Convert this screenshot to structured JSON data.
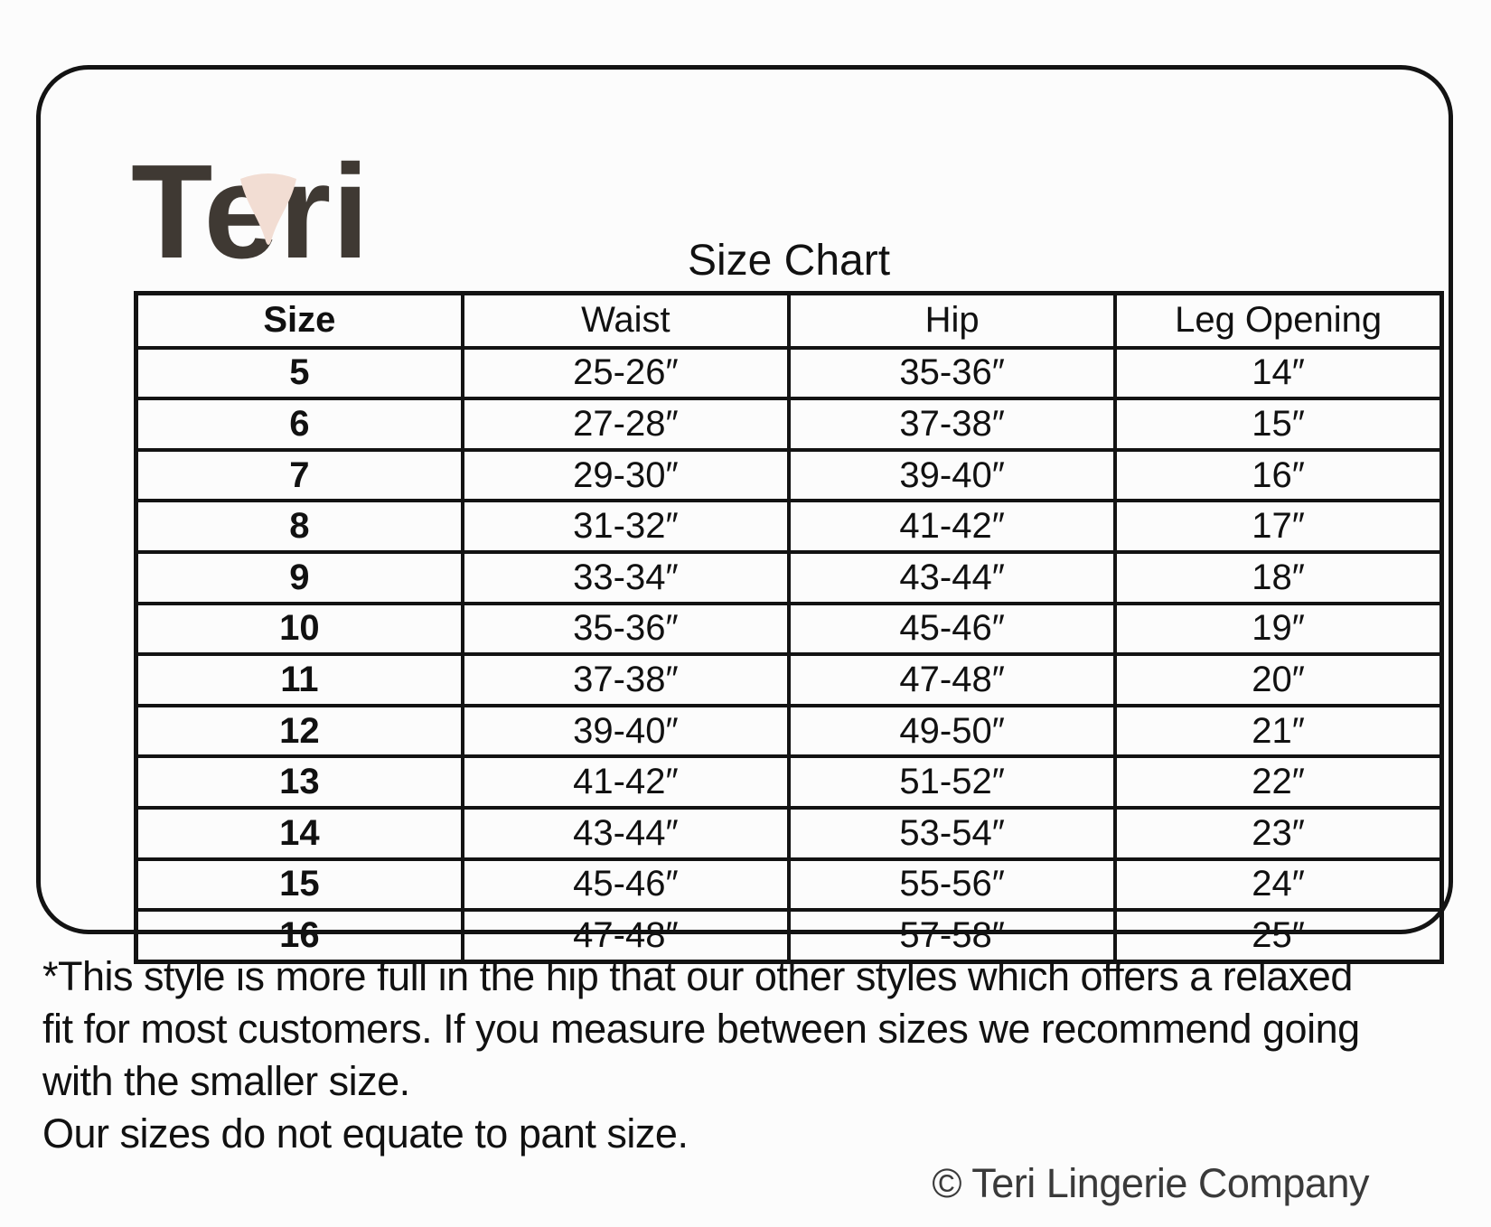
{
  "logo": {
    "text": "Teri"
  },
  "title": "Size Chart",
  "table": {
    "headers": [
      "Size",
      "Waist",
      "Hip",
      "Leg Opening"
    ],
    "rows": [
      [
        "5",
        "25-26″",
        "35-36″",
        "14″"
      ],
      [
        "6",
        "27-28″",
        "37-38″",
        "15″"
      ],
      [
        "7",
        "29-30″",
        "39-40″",
        "16″"
      ],
      [
        "8",
        "31-32″",
        "41-42″",
        "17″"
      ],
      [
        "9",
        "33-34″",
        "43-44″",
        "18″"
      ],
      [
        "10",
        "35-36″",
        "45-46″",
        "19″"
      ],
      [
        "11",
        "37-38″",
        "47-48″",
        "20″"
      ],
      [
        "12",
        "39-40″",
        "49-50″",
        "21″"
      ],
      [
        "13",
        "41-42″",
        "51-52″",
        "22″"
      ],
      [
        "14",
        "43-44″",
        "53-54″",
        "23″"
      ],
      [
        "15",
        "45-46″",
        "55-56″",
        "24″"
      ],
      [
        "16",
        "47-48″",
        "57-58″",
        "25″"
      ]
    ]
  },
  "notes": {
    "lines": [
      "*This style is more full in the hip that our other styles which offers a relaxed",
      "fit for most customers. If you measure between sizes we recommend going",
      "with the smaller size.",
      "Our sizes do not equate to pant size."
    ]
  },
  "copyright": "© Teri Lingerie Company",
  "colors": {
    "logo_text": "#3f3933",
    "triangle": "#f2ddd3",
    "line": "#131313",
    "ink": "#111111",
    "bg": "#fcfcfc"
  }
}
